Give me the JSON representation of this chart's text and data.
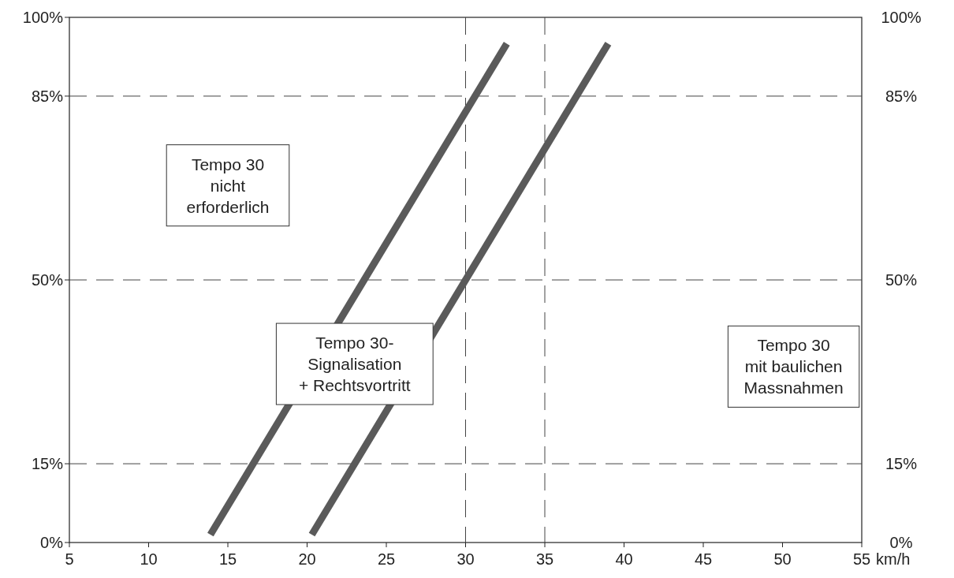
{
  "chart_data": {
    "type": "line",
    "xlabel": "km/h",
    "xlim": [
      5,
      55
    ],
    "xticks": [
      5,
      10,
      15,
      20,
      25,
      30,
      35,
      40,
      45,
      50,
      55
    ],
    "ylim": [
      0,
      100
    ],
    "yticks": [
      {
        "value": 0,
        "label": "0%"
      },
      {
        "value": 15,
        "label": "15%"
      },
      {
        "value": 50,
        "label": "50%"
      },
      {
        "value": 85,
        "label": "85%"
      },
      {
        "value": 100,
        "label": "100%"
      }
    ],
    "y2lim": [
      0,
      100
    ],
    "y2ticks": [
      {
        "value": 0,
        "label": "0%"
      },
      {
        "value": 15,
        "label": "15%"
      },
      {
        "value": 50,
        "label": "50%"
      },
      {
        "value": 85,
        "label": "85%"
      },
      {
        "value": 100,
        "label": "100%"
      }
    ],
    "series": [
      {
        "color": "#5a5a5a",
        "x": [
          13.9,
          32.6
        ],
        "values": [
          1.5,
          95
        ]
      },
      {
        "color": "#5a5a5a",
        "x": [
          20.3,
          39
        ],
        "values": [
          1.5,
          95
        ]
      }
    ],
    "ref_lines": [
      {
        "axis": "y",
        "value": 15,
        "line_style": "dashed",
        "color": "#444444"
      },
      {
        "axis": "y",
        "value": 50,
        "line_style": "dashed",
        "color": "#444444"
      },
      {
        "axis": "y",
        "value": 85,
        "line_style": "dashed",
        "color": "#444444"
      },
      {
        "axis": "x",
        "value": 30,
        "line_style": "dashed",
        "color": "#444444"
      },
      {
        "axis": "x",
        "value": 35,
        "line_style": "dashed",
        "color": "#444444"
      }
    ],
    "annotations": [
      "Tempo 30\nnicht\nerforderlich",
      "Tempo 30-\nSignalisation\n+ Rechtsvortritt",
      "Tempo 30\nmit baulichen\nMassnahmen"
    ],
    "line_style": "solid",
    "marker": "none",
    "grid": false
  }
}
